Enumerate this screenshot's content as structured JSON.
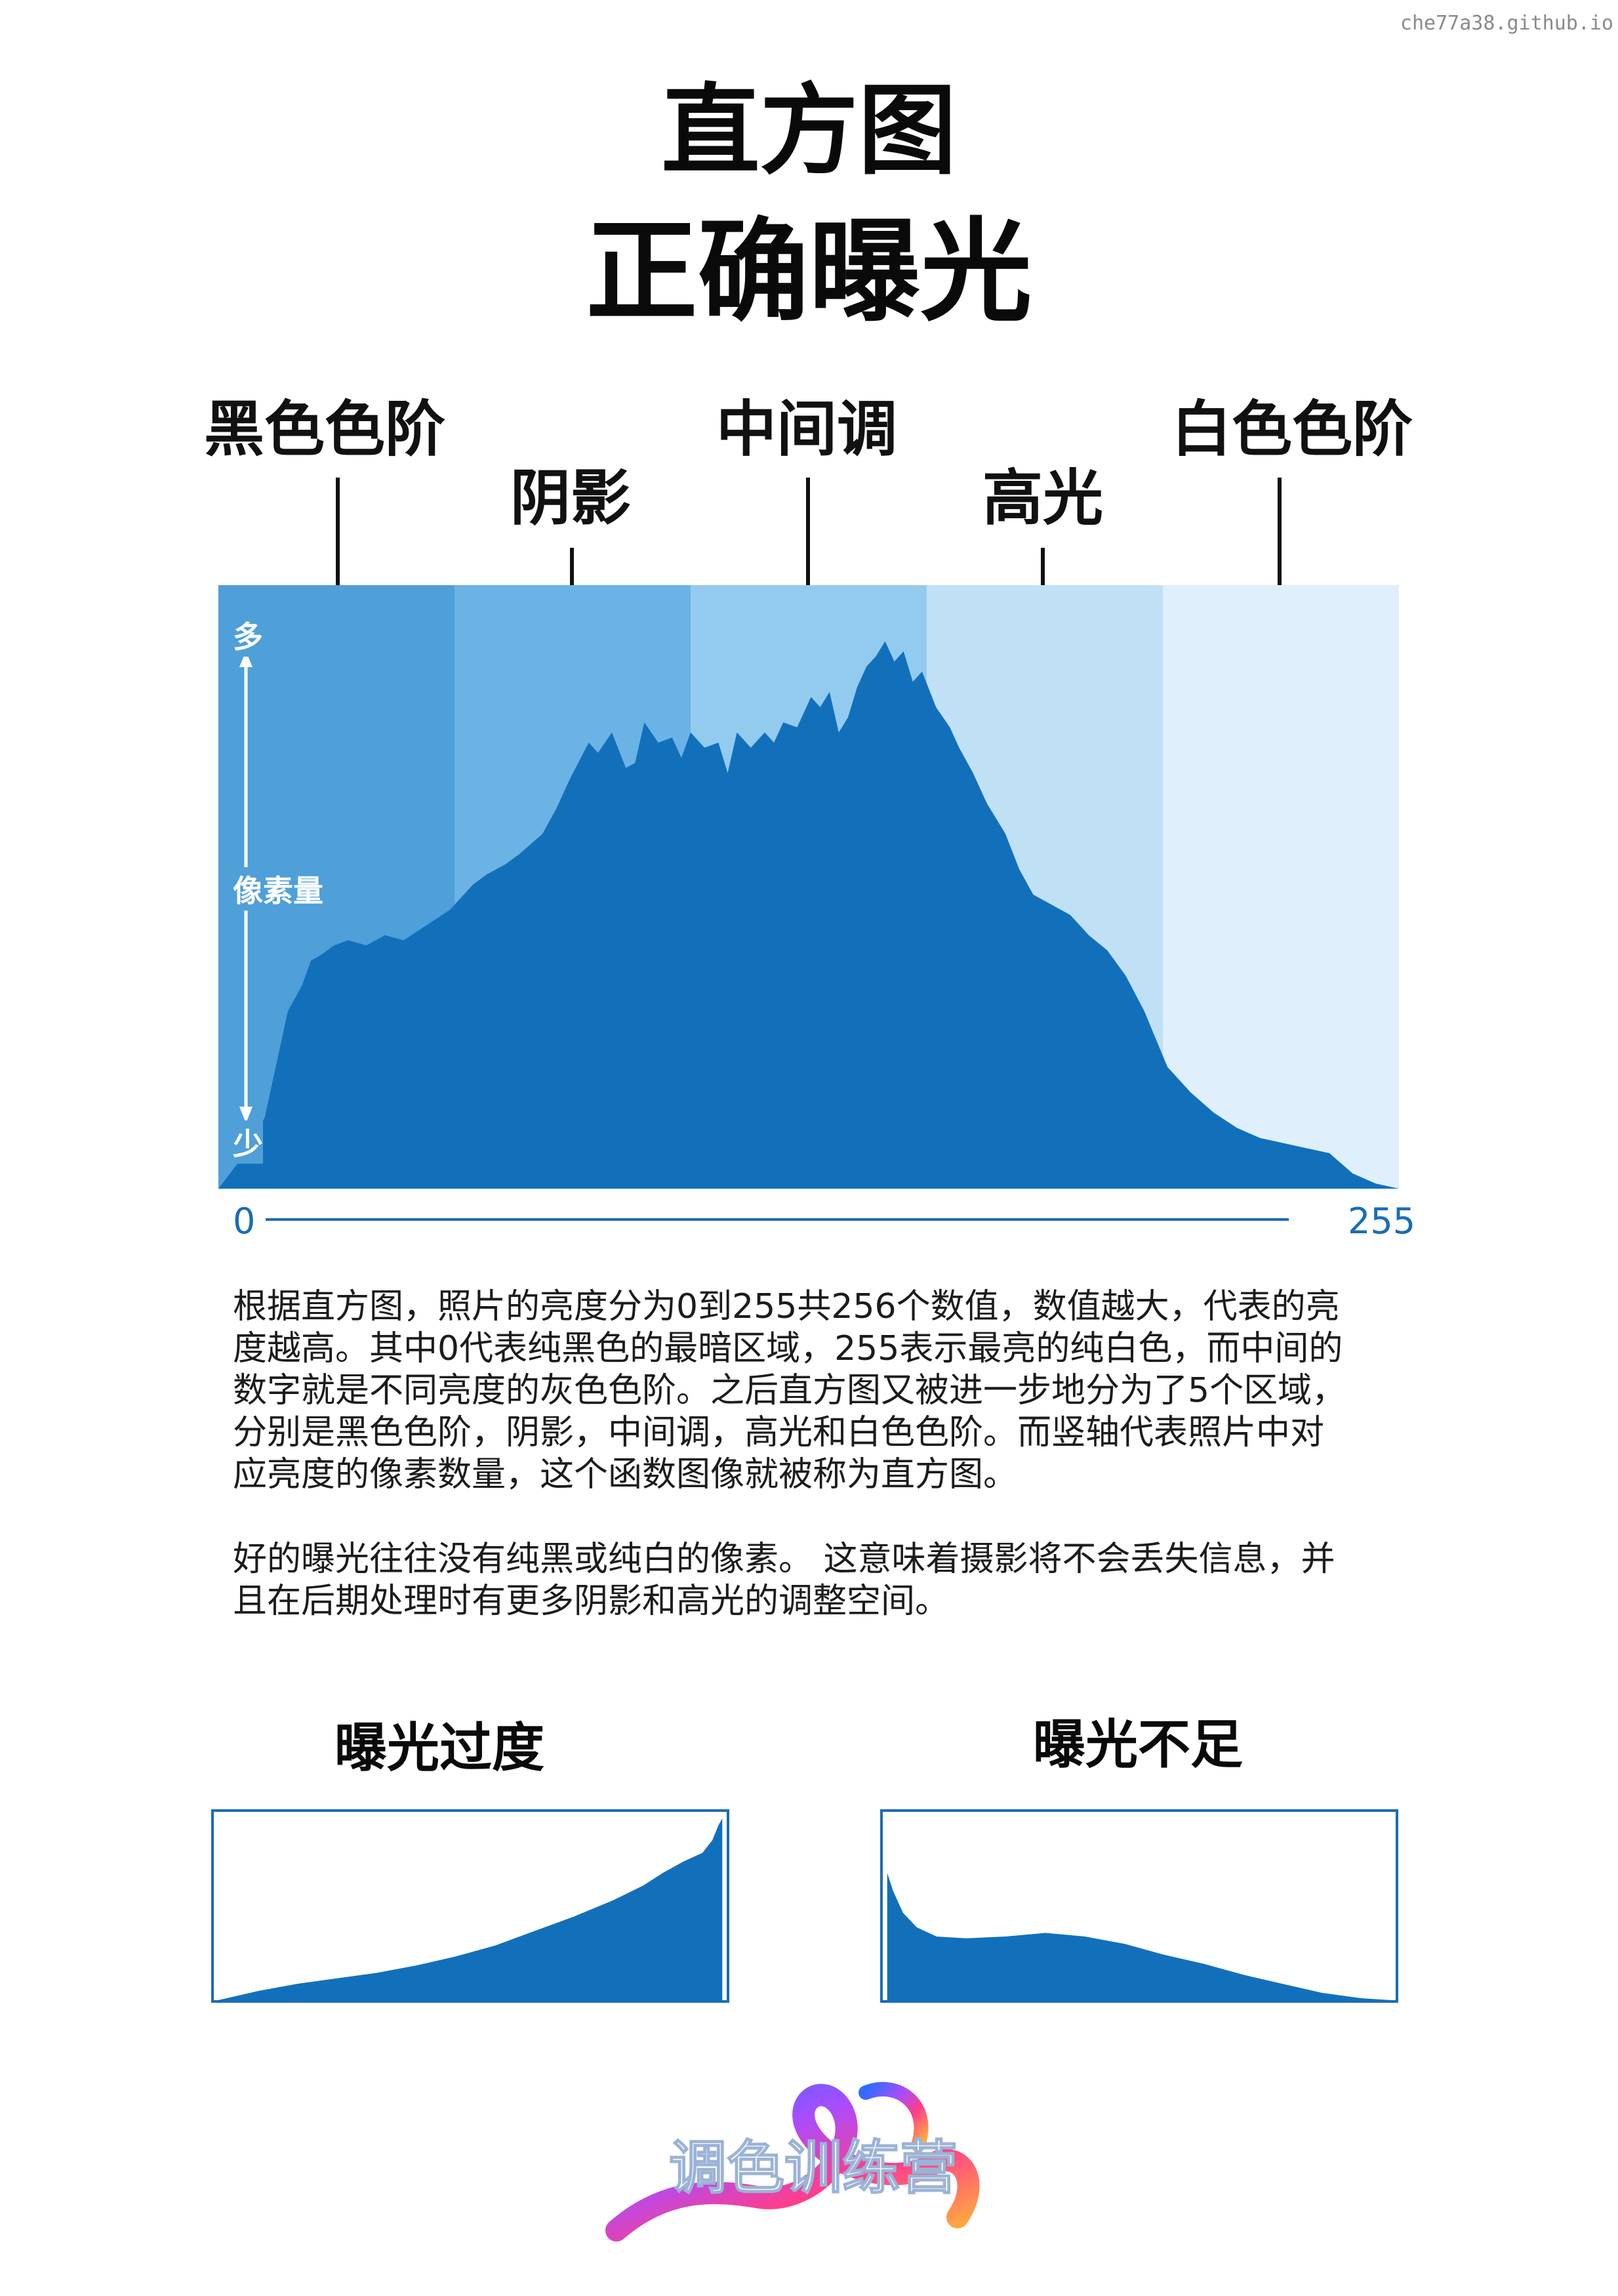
{
  "watermark": "che77a38.github.io",
  "title_line1": "直方图",
  "title_line2": "正确曝光",
  "zones": [
    {
      "label": "黑色色阶",
      "row": "upper"
    },
    {
      "label": "阴影",
      "row": "lower"
    },
    {
      "label": "中间调",
      "row": "upper"
    },
    {
      "label": "高光",
      "row": "lower"
    },
    {
      "label": "白色色阶",
      "row": "upper"
    }
  ],
  "zone_colors": [
    "#4f9fd9",
    "#6bb3e4",
    "#93cbef",
    "#c0e0f6",
    "#dfeffb"
  ],
  "fill_color": "#1270bb",
  "axis": {
    "y_top": "多",
    "y_label": "像素量",
    "y_bottom": "少",
    "x_min": "0",
    "x_max": "255"
  },
  "paragraph1_lines": [
    "根据直方图，照片的亮度分为0到255共256个数值，数值越大，代表的亮",
    "度越高。其中0代表纯黑色的最暗区域，255表示最亮的纯白色，而中间的",
    "数字就是不同亮度的灰色色阶。之后直方图又被进一步地分为了5个区域，",
    "分别是黑色色阶，阴影，中间调，高光和白色色阶。而竖轴代表照片中对",
    "应亮度的像素数量，这个函数图像就被称为直方图。"
  ],
  "paragraph2_lines": [
    "好的曝光往往没有纯黑或纯白的像素。 这意味着摄影将不会丢失信息，并",
    "且在后期处理时有更多阴影和高光的调整空间。"
  ],
  "overexposed_title": "曝光过度",
  "underexposed_title": "曝光不足",
  "logo_text": "调色训练营",
  "chart_data": [
    {
      "type": "area",
      "title": "正确曝光",
      "x": [
        0,
        5,
        10,
        15,
        18,
        20,
        22,
        25,
        28,
        32,
        36,
        40,
        45,
        50,
        55,
        58,
        62,
        65,
        70,
        73,
        76,
        80,
        82,
        85,
        88,
        90,
        92,
        95,
        98,
        100,
        102,
        105,
        108,
        110,
        112,
        115,
        118,
        120,
        122,
        125,
        128,
        130,
        132,
        134,
        136,
        138,
        140,
        142,
        144,
        146,
        148,
        150,
        152,
        155,
        158,
        160,
        163,
        166,
        170,
        173,
        176,
        180,
        184,
        188,
        192,
        196,
        200,
        205,
        210,
        215,
        220,
        225,
        230,
        235,
        240,
        245,
        250,
        255
      ],
      "y": [
        0,
        6,
        14,
        35,
        40,
        45,
        46,
        48,
        49,
        48,
        50,
        49,
        52,
        55,
        60,
        62,
        64,
        66,
        70,
        75,
        81,
        88,
        86,
        90,
        83,
        84,
        92,
        88,
        89,
        85,
        90,
        87,
        88,
        82,
        90,
        87,
        90,
        88,
        92,
        91,
        97,
        95,
        98,
        90,
        93,
        99,
        103,
        105,
        108,
        104,
        106,
        100,
        102,
        95,
        91,
        87,
        82,
        76,
        70,
        63,
        58,
        56,
        54,
        50,
        47,
        42,
        35,
        24,
        19,
        15,
        12,
        10,
        9,
        8,
        7,
        3,
        1,
        0
      ],
      "xlim": [
        0,
        255
      ],
      "ylabel": "像素量"
    },
    {
      "type": "area",
      "title": "曝光过度",
      "x": [
        0,
        20,
        40,
        60,
        80,
        100,
        120,
        140,
        160,
        180,
        200,
        215,
        225,
        235,
        245,
        250,
        253,
        255
      ],
      "y": [
        0,
        5,
        9,
        12,
        15,
        19,
        24,
        30,
        38,
        46,
        55,
        63,
        70,
        76,
        81,
        88,
        96,
        100
      ]
    },
    {
      "type": "area",
      "title": "曝光不足",
      "x": [
        0,
        3,
        8,
        15,
        25,
        40,
        60,
        80,
        100,
        120,
        140,
        160,
        180,
        200,
        220,
        240,
        255
      ],
      "y": [
        70,
        60,
        48,
        40,
        35,
        34,
        35,
        37,
        35,
        31,
        25,
        20,
        14,
        9,
        4,
        1,
        0
      ]
    }
  ]
}
